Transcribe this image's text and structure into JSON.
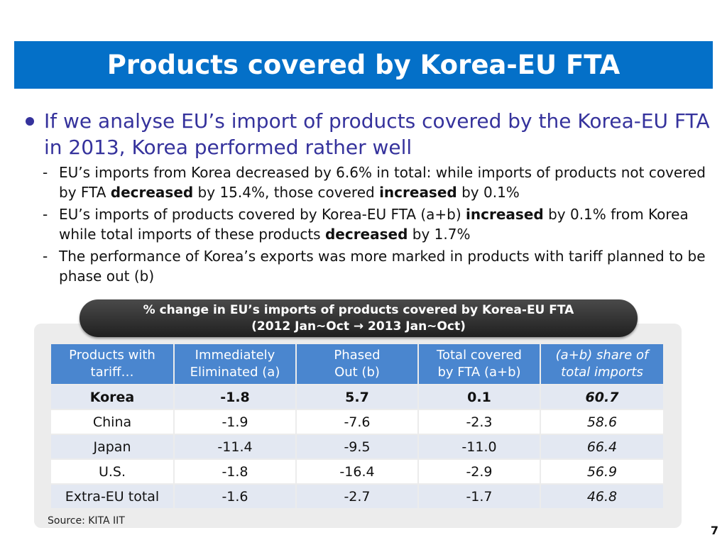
{
  "title": "Products covered by Korea-EU FTA",
  "main_bullet": "If we analyse EU’s import of products covered by the Korea-EU FTA in 2013, Korea performed rather well",
  "sub_bullets": [
    {
      "dash": "-",
      "parts": [
        "EU’s imports from Korea decreased by 6.6% in total: while imports of products not covered by FTA ",
        "decreased",
        " by 15.4%, those covered ",
        "increased",
        " by 0.1%"
      ]
    },
    {
      "dash": "-",
      "parts": [
        "EU’s imports of products covered by Korea-EU FTA (a+b) ",
        "increased",
        " by 0.1% from Korea while total imports of these products ",
        "decreased",
        " by 1.7%"
      ]
    },
    {
      "dash": "-",
      "parts": [
        "The performance of Korea’s exports was more marked in products with tariff planned to be phase out (b)"
      ]
    }
  ],
  "table_caption": {
    "line1": "% change in EU’s imports of products covered by Korea-EU FTA",
    "line2": "(2012 Jan~Oct → 2013 Jan~Oct)"
  },
  "table": {
    "headers": [
      {
        "line1": "Products with",
        "line2": "tariff…"
      },
      {
        "line1": "Immediately",
        "line2": "Eliminated (a)"
      },
      {
        "line1": "Phased",
        "line2": "Out (b)"
      },
      {
        "line1": "Total covered",
        "line2": "by FTA (a+b)"
      },
      {
        "line1": "(a+b) share of",
        "line2": "total imports"
      }
    ],
    "rows": [
      [
        "Korea",
        "-1.8",
        "5.7",
        "0.1",
        "60.7"
      ],
      [
        "China",
        "-1.9",
        "-7.6",
        "-2.3",
        "58.6"
      ],
      [
        "Japan",
        "-11.4",
        "-9.5",
        "-11.0",
        "66.4"
      ],
      [
        "U.S.",
        "-1.8",
        "-16.4",
        "-2.9",
        "56.9"
      ],
      [
        "Extra-EU total",
        "-1.6",
        "-2.7",
        "-1.7",
        "46.8"
      ]
    ]
  },
  "source": "Source: KITA IIT",
  "page_number": "7",
  "colors": {
    "title_bar": "#0470c8",
    "bullet_text": "#35329c",
    "table_header": "#4a86cf",
    "alt_row": "#e3e8f2"
  }
}
